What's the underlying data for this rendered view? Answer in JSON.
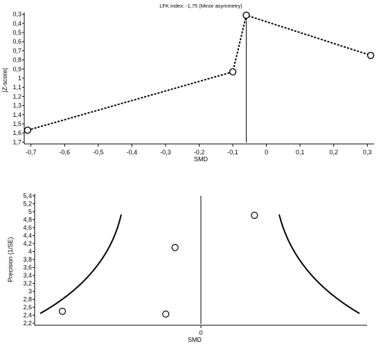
{
  "chart_data": [
    {
      "type": "line",
      "title": "LFK index: -1,75 (Minor asymmetry)",
      "xlabel": "SMD",
      "ylabel": "|Z-score|",
      "xlim": [
        -0.72,
        0.32
      ],
      "ylim": [
        0.28,
        1.72
      ],
      "y_inverted": true,
      "xticks": [
        -0.7,
        -0.6,
        -0.5,
        -0.4,
        -0.3,
        -0.2,
        -0.1,
        0,
        0.1,
        0.2,
        0.3
      ],
      "xtick_labels": [
        "-0,7",
        "-0,6",
        "-0,5",
        "-0,4",
        "-0,3",
        "-0,2",
        "-0,1",
        "0",
        "0,1",
        "0,2",
        "0,3"
      ],
      "yticks": [
        0.3,
        0.4,
        0.5,
        0.6,
        0.7,
        0.8,
        0.9,
        1,
        1.1,
        1.2,
        1.3,
        1.4,
        1.5,
        1.6,
        1.7
      ],
      "ytick_labels": [
        "0,3",
        "0,4",
        "0,5",
        "0,6",
        "0,7",
        "0,8",
        "0,9",
        "1",
        "1,1",
        "1,2",
        "1,3",
        "1,4",
        "1,5",
        "1,6",
        "1,7"
      ],
      "points": [
        {
          "x": -0.71,
          "y": 1.57
        },
        {
          "x": -0.1,
          "y": 0.93
        },
        {
          "x": -0.06,
          "y": 0.31
        },
        {
          "x": 0.31,
          "y": 0.75
        }
      ],
      "vertical_line_x": -0.06,
      "grid": false
    },
    {
      "type": "scatter",
      "title": "",
      "xlabel": "SMD",
      "ylabel": "Precision (1/SE)",
      "xlim": [
        -0.9,
        0.9
      ],
      "ylim": [
        2.15,
        5.45
      ],
      "xticks": [
        0
      ],
      "xtick_labels": [
        "0"
      ],
      "yticks": [
        2.2,
        2.4,
        2.6,
        2.8,
        3,
        3.2,
        3.4,
        3.6,
        3.8,
        4,
        4.2,
        4.4,
        4.6,
        4.8,
        5,
        5.2,
        5.4
      ],
      "ytick_labels": [
        "2,2",
        "2,4",
        "2,6",
        "2,8",
        "3",
        "3,2",
        "3,4",
        "3,6",
        "3,8",
        "4",
        "4,2",
        "4,4",
        "4,6",
        "4,8",
        "5",
        "5,2",
        "5,4"
      ],
      "points": [
        {
          "x": -0.75,
          "y": 2.5
        },
        {
          "x": -0.14,
          "y": 4.1
        },
        {
          "x": -0.19,
          "y": 2.43
        },
        {
          "x": 0.29,
          "y": 4.91
        }
      ],
      "vertical_line_x": 0,
      "grid": false
    }
  ]
}
